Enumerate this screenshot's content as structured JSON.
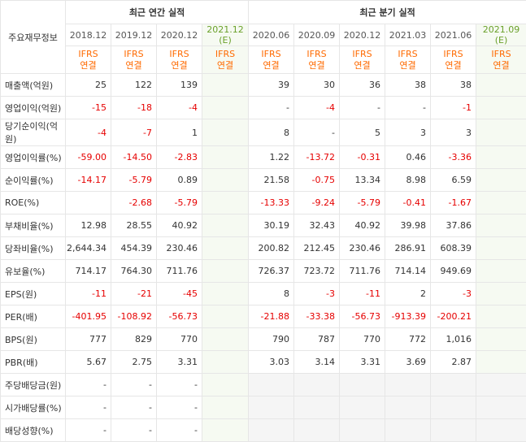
{
  "header": {
    "row_head": "주요재무정보",
    "annual_title": "최근 연간 실적",
    "quarter_title": "최근 분기 실적",
    "columns": [
      "2018.12",
      "2019.12",
      "2020.12",
      "2021.12 (E)",
      "2020.06",
      "2020.09",
      "2020.12",
      "2021.03",
      "2021.06",
      "2021.09 (E)"
    ],
    "ifrs": "IFRS",
    "consolidated": "연결"
  },
  "rows": [
    {
      "label": "매출액(억원)",
      "cells": [
        "25",
        "122",
        "139",
        "",
        "39",
        "30",
        "36",
        "38",
        "38",
        ""
      ]
    },
    {
      "label": "영업이익(억원)",
      "cells": [
        "-15",
        "-18",
        "-4",
        "",
        "-",
        "-4",
        "-",
        "-",
        "-1",
        ""
      ]
    },
    {
      "label": "당기순이익(억원)",
      "cells": [
        "-4",
        "-7",
        "1",
        "",
        "8",
        "-",
        "5",
        "3",
        "3",
        ""
      ]
    },
    {
      "label": "영업이익률(%)",
      "cells": [
        "-59.00",
        "-14.50",
        "-2.83",
        "",
        "1.22",
        "-13.72",
        "-0.31",
        "0.46",
        "-3.36",
        ""
      ]
    },
    {
      "label": "순이익률(%)",
      "cells": [
        "-14.17",
        "-5.79",
        "0.89",
        "",
        "21.58",
        "-0.75",
        "13.34",
        "8.98",
        "6.59",
        ""
      ]
    },
    {
      "label": "ROE(%)",
      "cells": [
        "",
        "-2.68",
        "-5.79",
        "",
        "-13.33",
        "-9.24",
        "-5.79",
        "-0.41",
        "-1.67",
        ""
      ]
    },
    {
      "label": "부채비율(%)",
      "cells": [
        "12.98",
        "28.55",
        "40.92",
        "",
        "30.19",
        "32.43",
        "40.92",
        "39.98",
        "37.86",
        ""
      ]
    },
    {
      "label": "당좌비율(%)",
      "cells": [
        "2,644.34",
        "454.39",
        "230.46",
        "",
        "200.82",
        "212.45",
        "230.46",
        "286.91",
        "608.39",
        ""
      ]
    },
    {
      "label": "유보율(%)",
      "cells": [
        "714.17",
        "764.30",
        "711.76",
        "",
        "726.37",
        "723.72",
        "711.76",
        "714.14",
        "949.69",
        ""
      ]
    },
    {
      "label": "EPS(원)",
      "cells": [
        "-11",
        "-21",
        "-45",
        "",
        "8",
        "-3",
        "-11",
        "2",
        "-3",
        ""
      ]
    },
    {
      "label": "PER(배)",
      "cells": [
        "-401.95",
        "-108.92",
        "-56.73",
        "",
        "-21.88",
        "-33.38",
        "-56.73",
        "-913.39",
        "-200.21",
        ""
      ]
    },
    {
      "label": "BPS(원)",
      "cells": [
        "777",
        "829",
        "770",
        "",
        "790",
        "787",
        "770",
        "772",
        "1,016",
        ""
      ]
    },
    {
      "label": "PBR(배)",
      "cells": [
        "5.67",
        "2.75",
        "3.31",
        "",
        "3.03",
        "3.14",
        "3.31",
        "3.69",
        "2.87",
        ""
      ]
    },
    {
      "label": "주당배당금(원)",
      "cells": [
        "-",
        "-",
        "-",
        "",
        "",
        "",
        "",
        "",
        "",
        ""
      ]
    },
    {
      "label": "시가배당률(%)",
      "cells": [
        "-",
        "-",
        "-",
        "",
        "",
        "",
        "",
        "",
        "",
        ""
      ]
    },
    {
      "label": "배당성향(%)",
      "cells": [
        "-",
        "-",
        "-",
        "",
        "",
        "",
        "",
        "",
        "",
        ""
      ]
    }
  ]
}
